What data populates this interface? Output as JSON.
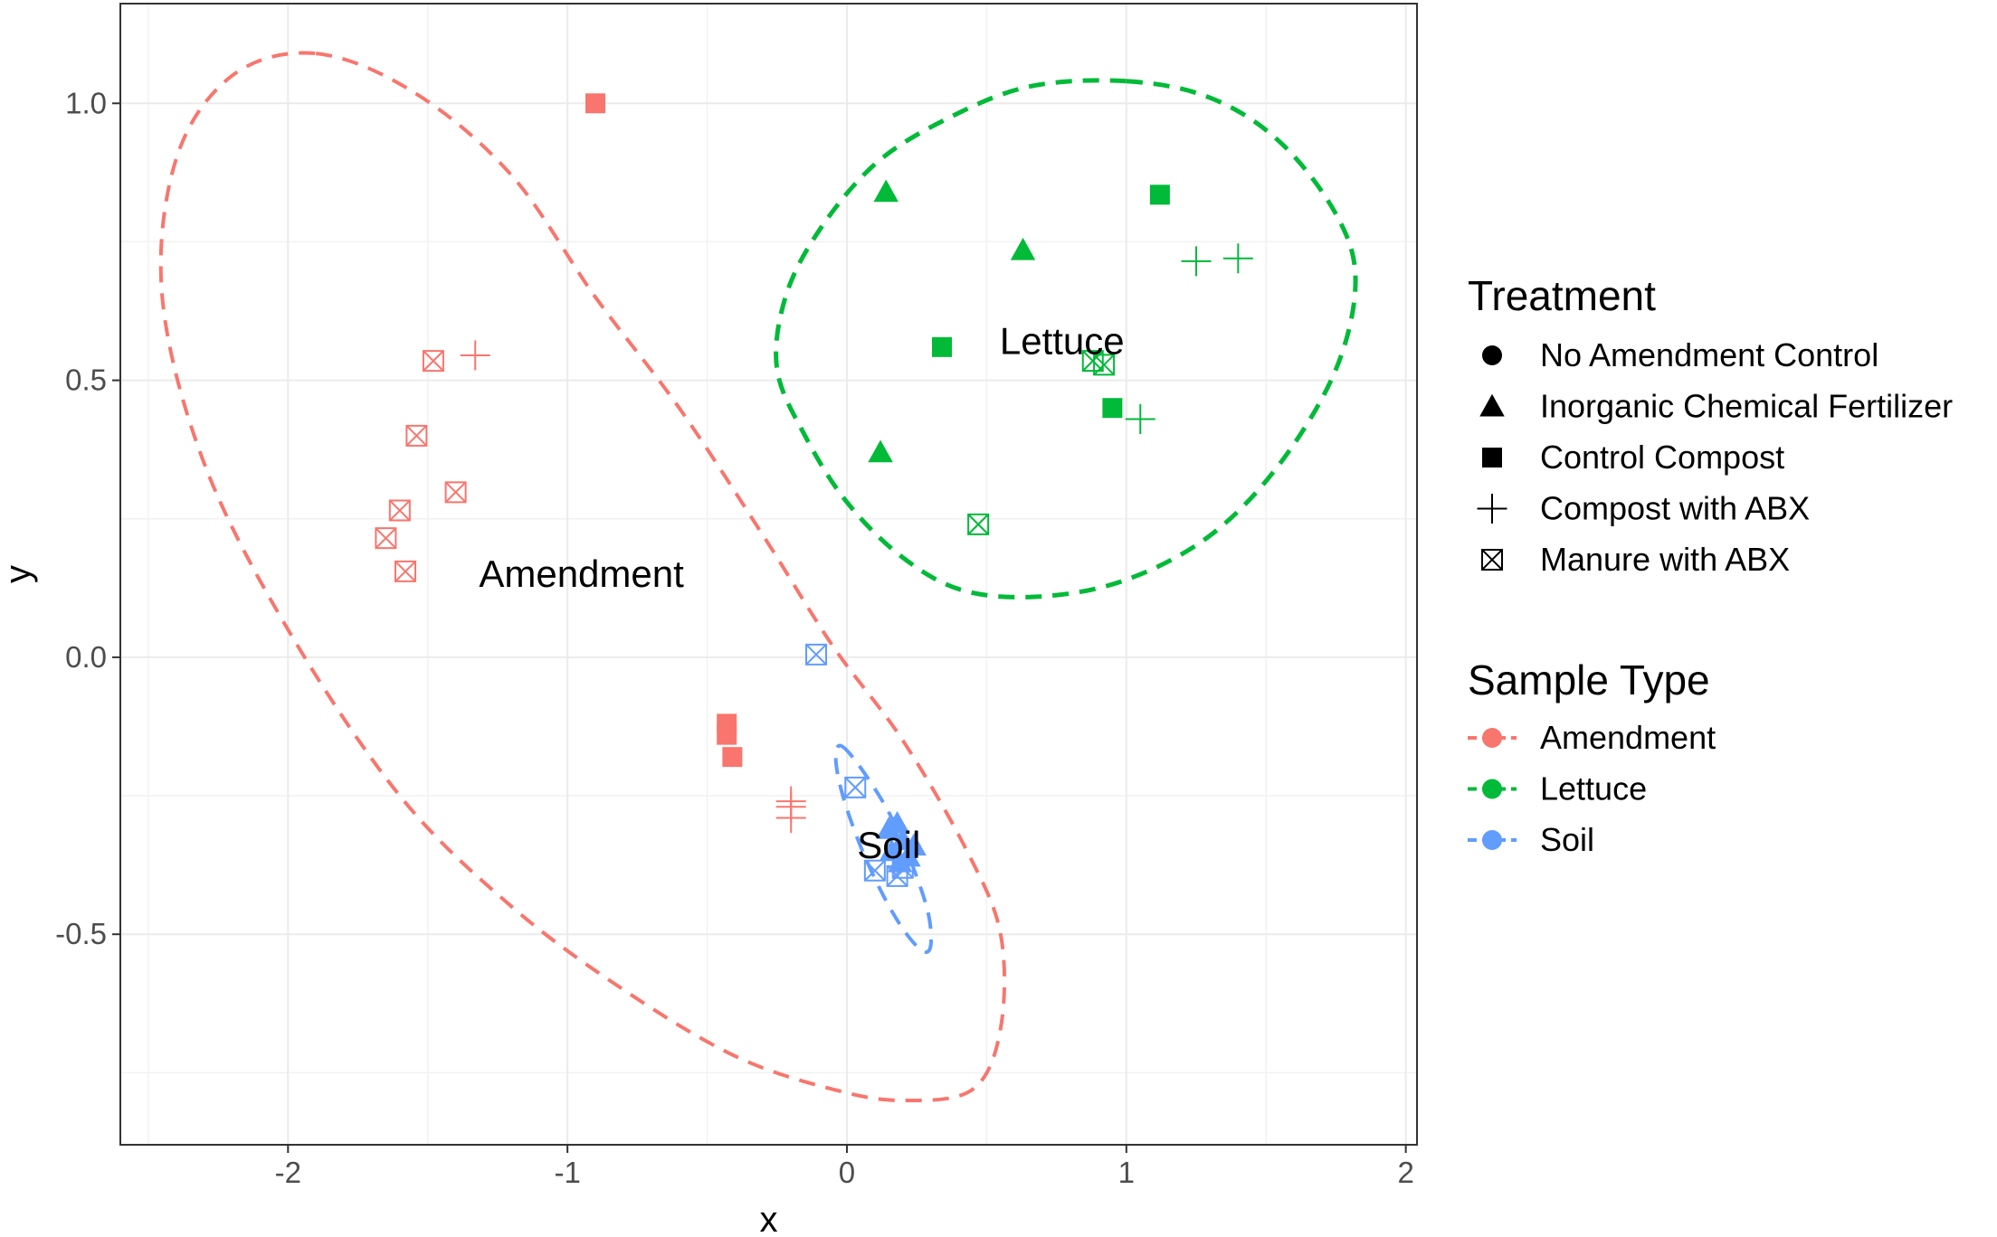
{
  "chart_data": {
    "type": "scatter",
    "title": "",
    "xlabel": "x",
    "ylabel": "y",
    "xlim": [
      -2.6,
      2.04
    ],
    "ylim": [
      -0.88,
      1.18
    ],
    "grid": true,
    "x_ticks": [
      -2,
      -1,
      0,
      1,
      2
    ],
    "x_tick_labels": [
      "-2",
      "-1",
      "0",
      "1",
      "2"
    ],
    "y_ticks": [
      -0.5,
      0.0,
      0.5,
      1.0
    ],
    "y_tick_labels": [
      "-0.5",
      "0.0",
      "0.5",
      "1.0"
    ],
    "colors": {
      "Amendment": "#F8766D",
      "Lettuce": "#00BA38",
      "Soil": "#619CFF"
    },
    "legend": {
      "treatment": {
        "title": "Treatment",
        "items": [
          {
            "label": "No Amendment Control",
            "shape": "circle"
          },
          {
            "label": "Inorganic Chemical Fertilizer",
            "shape": "triangle"
          },
          {
            "label": "Control Compost",
            "shape": "square"
          },
          {
            "label": "Compost with ABX",
            "shape": "plus"
          },
          {
            "label": "Manure with ABX",
            "shape": "boxx"
          }
        ]
      },
      "sample_type": {
        "title": "Sample Type",
        "items": [
          {
            "label": "Amendment",
            "color": "#F8766D"
          },
          {
            "label": "Lettuce",
            "color": "#00BA38"
          },
          {
            "label": "Soil",
            "color": "#619CFF"
          }
        ]
      }
    },
    "cluster_labels": [
      {
        "text": "Amendment",
        "x": -0.95,
        "y": 0.15,
        "group": "Amendment"
      },
      {
        "text": "Lettuce",
        "x": 0.77,
        "y": 0.57,
        "group": "Lettuce"
      },
      {
        "text": "Soil",
        "x": 0.15,
        "y": -0.34,
        "group": "Soil"
      }
    ],
    "ellipses": [
      {
        "group": "Amendment",
        "points": [
          [
            -1.9,
            1.09
          ],
          [
            -1.55,
            1.02
          ],
          [
            -1.2,
            0.87
          ],
          [
            -0.9,
            0.65
          ],
          [
            -0.6,
            0.45
          ],
          [
            -0.3,
            0.22
          ],
          [
            -0.05,
            0.02
          ],
          [
            0.2,
            -0.15
          ],
          [
            0.43,
            -0.35
          ],
          [
            0.55,
            -0.5
          ],
          [
            0.55,
            -0.67
          ],
          [
            0.45,
            -0.78
          ],
          [
            0.2,
            -0.8
          ],
          [
            -0.05,
            -0.78
          ],
          [
            -0.4,
            -0.72
          ],
          [
            -0.8,
            -0.6
          ],
          [
            -1.2,
            -0.45
          ],
          [
            -1.6,
            -0.25
          ],
          [
            -2.0,
            0.05
          ],
          [
            -2.3,
            0.35
          ],
          [
            -2.45,
            0.65
          ],
          [
            -2.4,
            0.9
          ],
          [
            -2.2,
            1.05
          ]
        ]
      },
      {
        "group": "Lettuce",
        "points": [
          [
            1.0,
            1.04
          ],
          [
            1.3,
            1.01
          ],
          [
            1.55,
            0.93
          ],
          [
            1.75,
            0.8
          ],
          [
            1.82,
            0.68
          ],
          [
            1.75,
            0.52
          ],
          [
            1.55,
            0.35
          ],
          [
            1.3,
            0.22
          ],
          [
            1.0,
            0.14
          ],
          [
            0.7,
            0.11
          ],
          [
            0.42,
            0.12
          ],
          [
            0.2,
            0.18
          ],
          [
            0.0,
            0.28
          ],
          [
            -0.15,
            0.4
          ],
          [
            -0.25,
            0.52
          ],
          [
            -0.22,
            0.65
          ],
          [
            -0.1,
            0.77
          ],
          [
            0.1,
            0.89
          ],
          [
            0.35,
            0.97
          ],
          [
            0.65,
            1.03
          ]
        ]
      },
      {
        "group": "Soil",
        "points": [
          [
            -0.02,
            -0.16
          ],
          [
            0.05,
            -0.2
          ],
          [
            0.15,
            -0.28
          ],
          [
            0.23,
            -0.37
          ],
          [
            0.29,
            -0.46
          ],
          [
            0.3,
            -0.52
          ],
          [
            0.27,
            -0.53
          ],
          [
            0.2,
            -0.49
          ],
          [
            0.12,
            -0.42
          ],
          [
            0.04,
            -0.33
          ],
          [
            -0.02,
            -0.24
          ],
          [
            -0.04,
            -0.18
          ]
        ]
      }
    ],
    "series": [
      {
        "group": "Amendment",
        "shape": "square",
        "points": [
          [
            -0.9,
            1.0
          ],
          [
            -0.43,
            -0.12
          ],
          [
            -0.43,
            -0.14
          ],
          [
            -0.41,
            -0.18
          ]
        ]
      },
      {
        "group": "Amendment",
        "shape": "plus",
        "points": [
          [
            -1.33,
            0.545
          ],
          [
            -0.2,
            -0.26
          ],
          [
            -0.2,
            -0.29
          ],
          [
            -0.2,
            -0.27
          ]
        ]
      },
      {
        "group": "Amendment",
        "shape": "boxx",
        "points": [
          [
            -1.48,
            0.535
          ],
          [
            -1.54,
            0.4
          ],
          [
            -1.4,
            0.298
          ],
          [
            -1.6,
            0.265
          ],
          [
            -1.65,
            0.215
          ],
          [
            -1.58,
            0.155
          ]
        ]
      },
      {
        "group": "Lettuce",
        "shape": "triangle",
        "points": [
          [
            0.14,
            0.84
          ],
          [
            0.63,
            0.735
          ],
          [
            0.12,
            0.37
          ]
        ]
      },
      {
        "group": "Lettuce",
        "shape": "square",
        "points": [
          [
            1.12,
            0.835
          ],
          [
            0.34,
            0.56
          ],
          [
            0.95,
            0.45
          ]
        ]
      },
      {
        "group": "Lettuce",
        "shape": "plus",
        "points": [
          [
            1.25,
            0.715
          ],
          [
            1.4,
            0.72
          ],
          [
            1.05,
            0.43
          ]
        ]
      },
      {
        "group": "Lettuce",
        "shape": "boxx",
        "points": [
          [
            0.88,
            0.535
          ],
          [
            0.92,
            0.528
          ],
          [
            0.47,
            0.24
          ]
        ]
      },
      {
        "group": "Soil",
        "shape": "boxx",
        "points": [
          [
            -0.11,
            0.005
          ],
          [
            0.03,
            -0.235
          ],
          [
            0.1,
            -0.385
          ],
          [
            0.18,
            -0.395
          ],
          [
            0.2,
            -0.38
          ]
        ]
      },
      {
        "group": "Soil",
        "shape": "triangle",
        "points": [
          [
            0.18,
            -0.3
          ],
          [
            0.2,
            -0.33
          ],
          [
            0.16,
            -0.35
          ],
          [
            0.22,
            -0.36
          ],
          [
            0.15,
            -0.31
          ],
          [
            0.24,
            -0.34
          ],
          [
            0.19,
            -0.37
          ]
        ]
      }
    ]
  }
}
